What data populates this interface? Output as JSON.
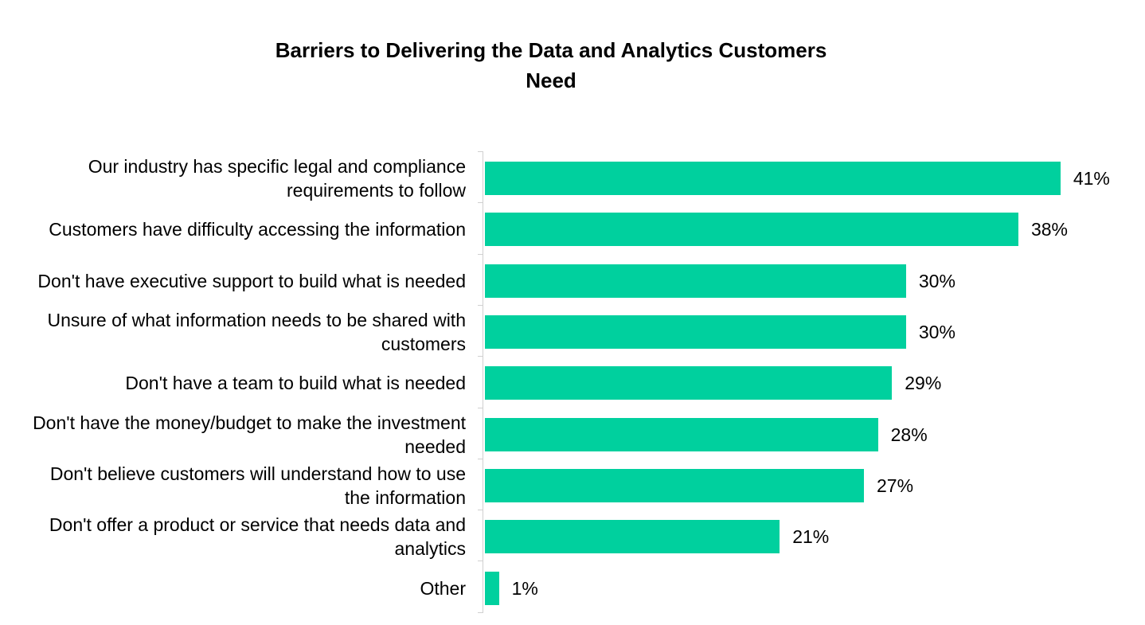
{
  "chart_data": {
    "type": "bar",
    "orientation": "horizontal",
    "title": "Barriers to Delivering the Data and Analytics Customers Need",
    "categories": [
      "Our industry has specific legal and compliance requirements to follow",
      "Customers have difficulty accessing the information",
      "Don't have executive support to build what is needed",
      "Unsure of what information needs to be shared with customers",
      "Don't have a team to build what is needed",
      "Don't have the money/budget to make the investment needed",
      "Don't believe customers will understand how to use the information",
      "Don't offer a product or service that needs data and analytics",
      "Other"
    ],
    "values": [
      41,
      38,
      30,
      30,
      29,
      28,
      27,
      21,
      1
    ],
    "value_labels": [
      "41%",
      "38%",
      "30%",
      "30%",
      "29%",
      "28%",
      "27%",
      "21%",
      "1%"
    ],
    "color": "#00d09e"
  }
}
